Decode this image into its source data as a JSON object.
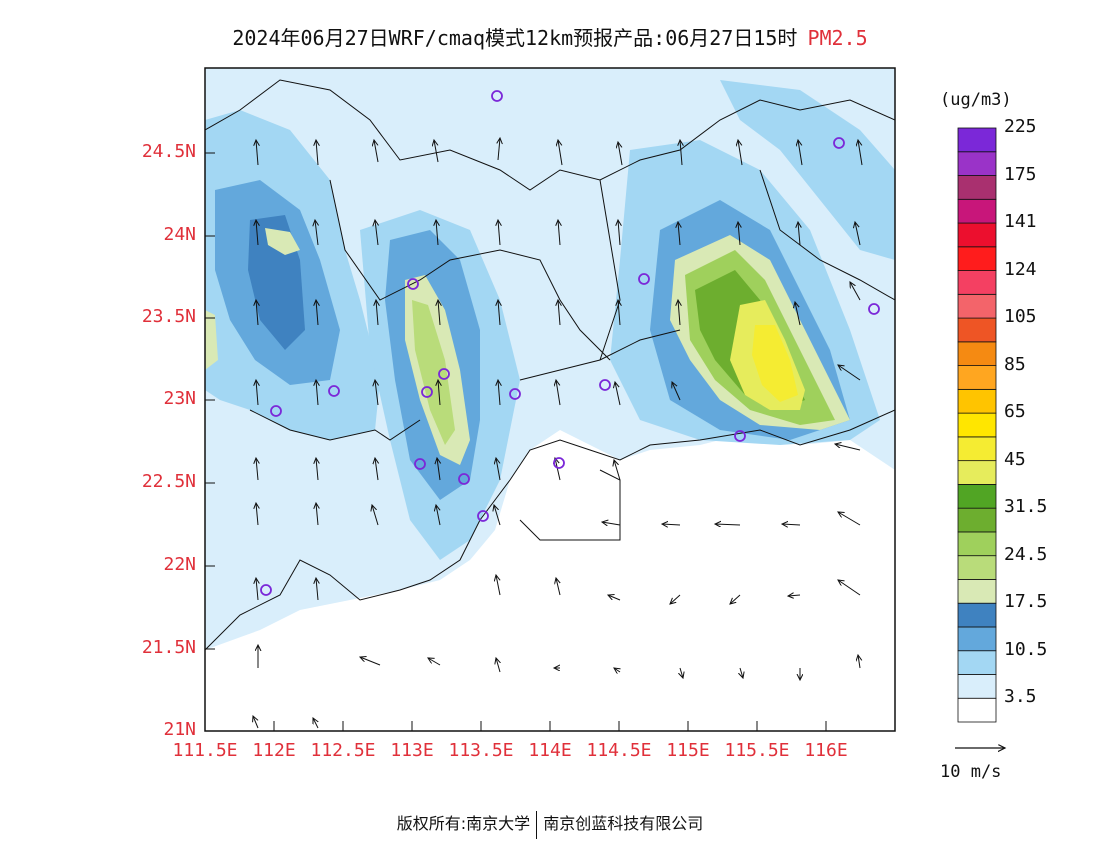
{
  "title": {
    "main": "2024年06月27日WRF/cmaq模式12km预报产品:06月27日15时",
    "variable": "PM2.5"
  },
  "colorbar": {
    "unit": "(ug/m3)",
    "colors": [
      "#ffffff",
      "#d9eefb",
      "#a3d7f3",
      "#63a8dc",
      "#3f82c0",
      "#d9e9b5",
      "#b9dc7a",
      "#9fd05c",
      "#6dae2f",
      "#51a524",
      "#e6ec5c",
      "#f5ec32",
      "#ffe600",
      "#ffc400",
      "#ffa620",
      "#f58a12",
      "#ee5525",
      "#f3646a",
      "#f44062",
      "#ff1c1c",
      "#ec0f2e",
      "#c8167a",
      "#a9306f",
      "#9a33c8",
      "#7b28d8"
    ],
    "labels": [
      "3.5",
      "10.5",
      "17.5",
      "24.5",
      "31.5",
      "45",
      "65",
      "85",
      "105",
      "124",
      "141",
      "175",
      "225"
    ]
  },
  "axes": {
    "lat_ticks": [
      "24.5N",
      "24N",
      "23.5N",
      "23N",
      "22.5N",
      "22N",
      "21.5N",
      "21N"
    ],
    "lon_ticks": [
      "111.5E",
      "112E",
      "112.5E",
      "113E",
      "113.5E",
      "114E",
      "114.5E",
      "115E",
      "115.5E",
      "116E"
    ]
  },
  "wind": {
    "reference": "10 m/s"
  },
  "stations_count": 16,
  "footer": {
    "left": "版权所有:南京大学",
    "right": "南京创蓝科技有限公司"
  }
}
